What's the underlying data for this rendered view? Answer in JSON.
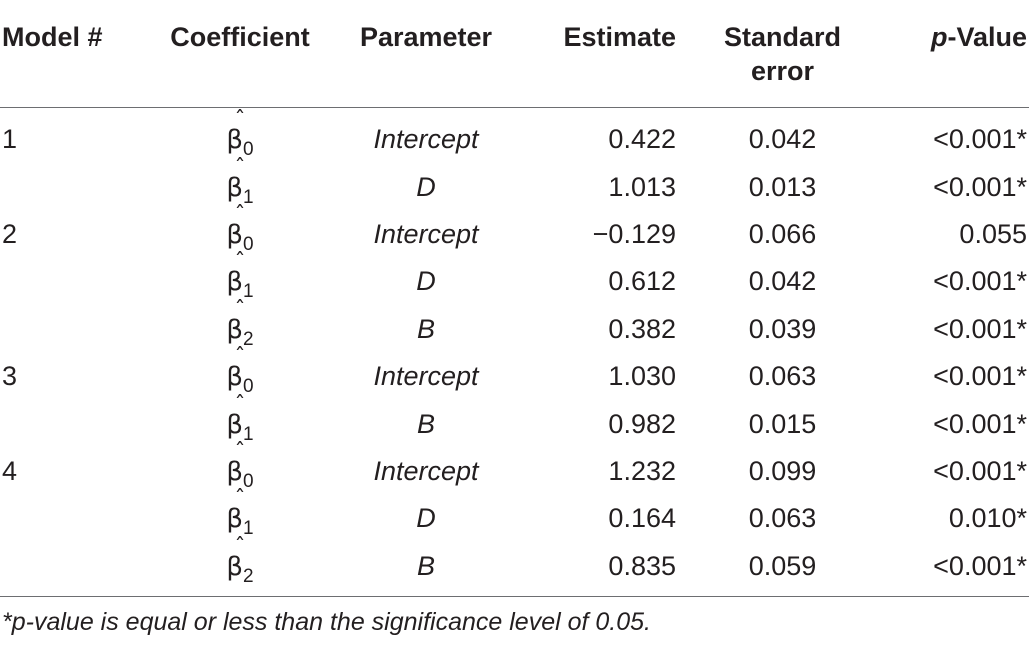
{
  "table": {
    "headers": {
      "model": "Model #",
      "coefficient": "Coefficient",
      "parameter": "Parameter",
      "estimate": "Estimate",
      "standard_error_line1": "Standard",
      "standard_error_line2": "error",
      "p_value_italic": "p",
      "p_value_rest": "-Value"
    },
    "rows": [
      {
        "model": "1",
        "coef_symbol": "β",
        "coef_hat": "ˆ",
        "coef_sub": "0",
        "parameter": "Intercept",
        "estimate": "0.422",
        "standard_error": "0.042",
        "p_value": "<0.001*"
      },
      {
        "model": "",
        "coef_symbol": "β",
        "coef_hat": "ˆ",
        "coef_sub": "1",
        "parameter": "D",
        "estimate": "1.013",
        "standard_error": "0.013",
        "p_value": "<0.001*"
      },
      {
        "model": "2",
        "coef_symbol": "β",
        "coef_hat": "ˆ",
        "coef_sub": "0",
        "parameter": "Intercept",
        "estimate": "−0.129",
        "standard_error": "0.066",
        "p_value": "0.055"
      },
      {
        "model": "",
        "coef_symbol": "β",
        "coef_hat": "ˆ",
        "coef_sub": "1",
        "parameter": "D",
        "estimate": "0.612",
        "standard_error": "0.042",
        "p_value": "<0.001*"
      },
      {
        "model": "",
        "coef_symbol": "β",
        "coef_hat": "ˆ",
        "coef_sub": "2",
        "parameter": "B",
        "estimate": "0.382",
        "standard_error": "0.039",
        "p_value": "<0.001*"
      },
      {
        "model": "3",
        "coef_symbol": "β",
        "coef_hat": "ˆ",
        "coef_sub": "0",
        "parameter": "Intercept",
        "estimate": "1.030",
        "standard_error": "0.063",
        "p_value": "<0.001*"
      },
      {
        "model": "",
        "coef_symbol": "β",
        "coef_hat": "ˆ",
        "coef_sub": "1",
        "parameter": "B",
        "estimate": "0.982",
        "standard_error": "0.015",
        "p_value": "<0.001*"
      },
      {
        "model": "4",
        "coef_symbol": "β",
        "coef_hat": "ˆ",
        "coef_sub": "0",
        "parameter": "Intercept",
        "estimate": "1.232",
        "standard_error": "0.099",
        "p_value": "<0.001*"
      },
      {
        "model": "",
        "coef_symbol": "β",
        "coef_hat": "ˆ",
        "coef_sub": "1",
        "parameter": "D",
        "estimate": "0.164",
        "standard_error": "0.063",
        "p_value": "0.010*"
      },
      {
        "model": "",
        "coef_symbol": "β",
        "coef_hat": "ˆ",
        "coef_sub": "2",
        "parameter": "B",
        "estimate": "0.835",
        "standard_error": "0.059",
        "p_value": "<0.001*"
      }
    ],
    "footnote": "*p-value is equal or less than the significance level of 0.05."
  }
}
